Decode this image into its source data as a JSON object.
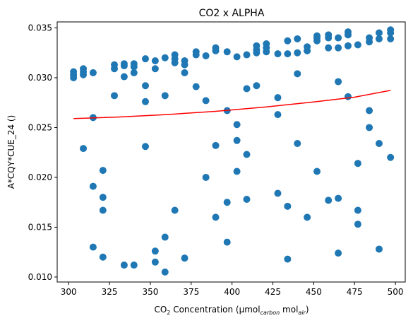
{
  "chart_data": {
    "type": "scatter",
    "title": "CO2 x ALPHA",
    "ylabel": "A*CQY*CUE_24 ()",
    "xlabel": {
      "main": "CO",
      "main_sub": "2",
      "rest": " Concentration (μmol",
      "sub1": "carbon",
      "mid": " mol",
      "sub2": "air",
      "end": ")"
    },
    "xlim": [
      293,
      506
    ],
    "ylim": [
      0.0095,
      0.0356
    ],
    "x_ticks": [
      300,
      325,
      350,
      375,
      400,
      425,
      450,
      475,
      500
    ],
    "x_tick_labels": [
      "300",
      "325",
      "350",
      "375",
      "400",
      "425",
      "450",
      "475",
      "500"
    ],
    "y_ticks": [
      0.01,
      0.015,
      0.02,
      0.025,
      0.03,
      0.035
    ],
    "y_tick_labels": [
      "0.010",
      "0.015",
      "0.020",
      "0.025",
      "0.030",
      "0.035"
    ],
    "point_color": "#1f77b4",
    "fit_color": "#ff0000",
    "points": [
      {
        "x": 303,
        "y": 0.0306
      },
      {
        "x": 303,
        "y": 0.0303
      },
      {
        "x": 303,
        "y": 0.03
      },
      {
        "x": 309,
        "y": 0.0309
      },
      {
        "x": 309,
        "y": 0.0306
      },
      {
        "x": 309,
        "y": 0.0303
      },
      {
        "x": 309,
        "y": 0.0229
      },
      {
        "x": 315,
        "y": 0.0305
      },
      {
        "x": 315,
        "y": 0.026
      },
      {
        "x": 315,
        "y": 0.0191
      },
      {
        "x": 315,
        "y": 0.013
      },
      {
        "x": 321,
        "y": 0.0207
      },
      {
        "x": 321,
        "y": 0.018
      },
      {
        "x": 321,
        "y": 0.0167
      },
      {
        "x": 321,
        "y": 0.012
      },
      {
        "x": 328,
        "y": 0.0313
      },
      {
        "x": 328,
        "y": 0.0309
      },
      {
        "x": 328,
        "y": 0.0282
      },
      {
        "x": 334,
        "y": 0.0314
      },
      {
        "x": 334,
        "y": 0.0312
      },
      {
        "x": 334,
        "y": 0.0301
      },
      {
        "x": 334,
        "y": 0.0112
      },
      {
        "x": 340,
        "y": 0.0314
      },
      {
        "x": 340,
        "y": 0.0311
      },
      {
        "x": 340,
        "y": 0.0305
      },
      {
        "x": 340,
        "y": 0.0112
      },
      {
        "x": 347,
        "y": 0.0319
      },
      {
        "x": 347,
        "y": 0.0292
      },
      {
        "x": 347,
        "y": 0.0276
      },
      {
        "x": 347,
        "y": 0.0231
      },
      {
        "x": 353,
        "y": 0.0317
      },
      {
        "x": 353,
        "y": 0.0309
      },
      {
        "x": 353,
        "y": 0.0126
      },
      {
        "x": 353,
        "y": 0.0115
      },
      {
        "x": 359,
        "y": 0.032
      },
      {
        "x": 359,
        "y": 0.0282
      },
      {
        "x": 359,
        "y": 0.014
      },
      {
        "x": 359,
        "y": 0.0105
      },
      {
        "x": 365,
        "y": 0.0323
      },
      {
        "x": 365,
        "y": 0.0319
      },
      {
        "x": 365,
        "y": 0.0315
      },
      {
        "x": 365,
        "y": 0.0167
      },
      {
        "x": 371,
        "y": 0.0317
      },
      {
        "x": 371,
        "y": 0.0313
      },
      {
        "x": 371,
        "y": 0.0305
      },
      {
        "x": 371,
        "y": 0.0119
      },
      {
        "x": 378,
        "y": 0.0326
      },
      {
        "x": 378,
        "y": 0.0323
      },
      {
        "x": 378,
        "y": 0.0291
      },
      {
        "x": 384,
        "y": 0.0322
      },
      {
        "x": 384,
        "y": 0.0277
      },
      {
        "x": 384,
        "y": 0.02
      },
      {
        "x": 390,
        "y": 0.033
      },
      {
        "x": 390,
        "y": 0.0327
      },
      {
        "x": 390,
        "y": 0.0232
      },
      {
        "x": 390,
        "y": 0.016
      },
      {
        "x": 397,
        "y": 0.0326
      },
      {
        "x": 397,
        "y": 0.0267
      },
      {
        "x": 397,
        "y": 0.0175
      },
      {
        "x": 397,
        "y": 0.0135
      },
      {
        "x": 403,
        "y": 0.0321
      },
      {
        "x": 403,
        "y": 0.0253
      },
      {
        "x": 403,
        "y": 0.0237
      },
      {
        "x": 403,
        "y": 0.0206
      },
      {
        "x": 409,
        "y": 0.0323
      },
      {
        "x": 409,
        "y": 0.0289
      },
      {
        "x": 409,
        "y": 0.0223
      },
      {
        "x": 409,
        "y": 0.0178
      },
      {
        "x": 415,
        "y": 0.0332
      },
      {
        "x": 415,
        "y": 0.0328
      },
      {
        "x": 415,
        "y": 0.0325
      },
      {
        "x": 415,
        "y": 0.0292
      },
      {
        "x": 421,
        "y": 0.0334
      },
      {
        "x": 421,
        "y": 0.033
      },
      {
        "x": 421,
        "y": 0.0326
      },
      {
        "x": 428,
        "y": 0.0324
      },
      {
        "x": 428,
        "y": 0.028
      },
      {
        "x": 428,
        "y": 0.0263
      },
      {
        "x": 428,
        "y": 0.0184
      },
      {
        "x": 434,
        "y": 0.0337
      },
      {
        "x": 434,
        "y": 0.0324
      },
      {
        "x": 434,
        "y": 0.0171
      },
      {
        "x": 434,
        "y": 0.0118
      },
      {
        "x": 440,
        "y": 0.0339
      },
      {
        "x": 440,
        "y": 0.0325
      },
      {
        "x": 440,
        "y": 0.0304
      },
      {
        "x": 440,
        "y": 0.0234
      },
      {
        "x": 446,
        "y": 0.0331
      },
      {
        "x": 446,
        "y": 0.0327
      },
      {
        "x": 446,
        "y": 0.016
      },
      {
        "x": 452,
        "y": 0.0342
      },
      {
        "x": 452,
        "y": 0.034
      },
      {
        "x": 452,
        "y": 0.0337
      },
      {
        "x": 452,
        "y": 0.0206
      },
      {
        "x": 459,
        "y": 0.0343
      },
      {
        "x": 459,
        "y": 0.034
      },
      {
        "x": 459,
        "y": 0.033
      },
      {
        "x": 459,
        "y": 0.0177
      },
      {
        "x": 465,
        "y": 0.034
      },
      {
        "x": 465,
        "y": 0.033
      },
      {
        "x": 465,
        "y": 0.0296
      },
      {
        "x": 465,
        "y": 0.0179
      },
      {
        "x": 465,
        "y": 0.0124
      },
      {
        "x": 471,
        "y": 0.0346
      },
      {
        "x": 471,
        "y": 0.0343
      },
      {
        "x": 471,
        "y": 0.0332
      },
      {
        "x": 471,
        "y": 0.0281
      },
      {
        "x": 477,
        "y": 0.0333
      },
      {
        "x": 477,
        "y": 0.0214
      },
      {
        "x": 477,
        "y": 0.0167
      },
      {
        "x": 477,
        "y": 0.0153
      },
      {
        "x": 484,
        "y": 0.034
      },
      {
        "x": 484,
        "y": 0.0336
      },
      {
        "x": 484,
        "y": 0.0267
      },
      {
        "x": 484,
        "y": 0.025
      },
      {
        "x": 490,
        "y": 0.0345
      },
      {
        "x": 490,
        "y": 0.0339
      },
      {
        "x": 490,
        "y": 0.0234
      },
      {
        "x": 490,
        "y": 0.0128
      },
      {
        "x": 497,
        "y": 0.0348
      },
      {
        "x": 497,
        "y": 0.0345
      },
      {
        "x": 497,
        "y": 0.0339
      },
      {
        "x": 497,
        "y": 0.022
      }
    ],
    "fit_line": [
      {
        "x": 303,
        "y": 0.0259
      },
      {
        "x": 330,
        "y": 0.02605
      },
      {
        "x": 360,
        "y": 0.0263
      },
      {
        "x": 390,
        "y": 0.02663
      },
      {
        "x": 420,
        "y": 0.02705
      },
      {
        "x": 450,
        "y": 0.02757
      },
      {
        "x": 475,
        "y": 0.02805
      },
      {
        "x": 497,
        "y": 0.02873
      }
    ]
  }
}
